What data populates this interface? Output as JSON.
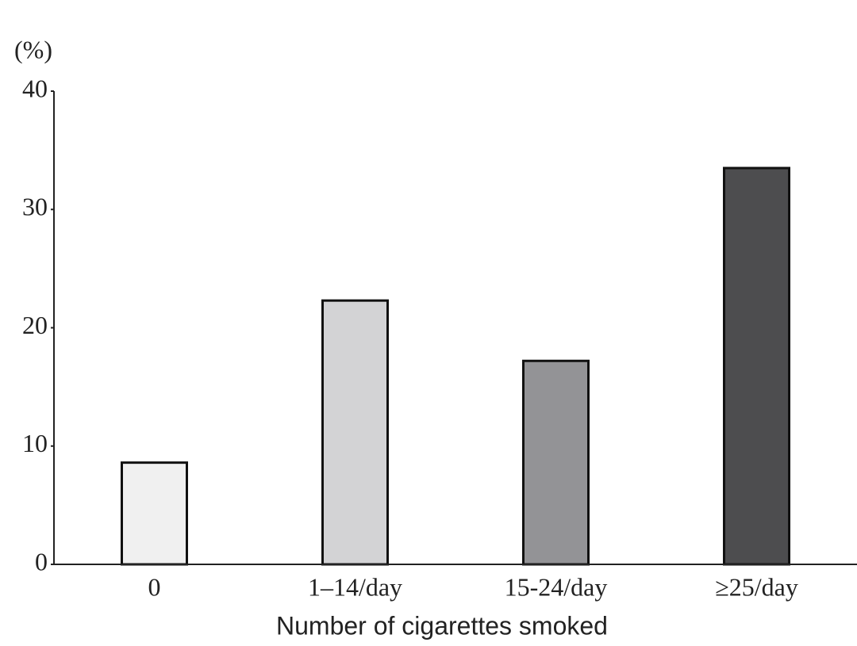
{
  "chart_data": {
    "type": "bar",
    "y_unit_label": "(%)",
    "x_axis_label": "Number of cigarettes smoked",
    "categories": [
      "0",
      "1–14/day",
      "15-24/day",
      "≥25/day"
    ],
    "values": [
      8.6,
      22.3,
      17.2,
      33.5
    ],
    "colors": [
      "#f0f0f0",
      "#d3d3d5",
      "#939396",
      "#4d4d4f"
    ],
    "ylim": [
      0,
      40
    ],
    "yticks": [
      0,
      10,
      20,
      30,
      40
    ],
    "grid": false
  }
}
